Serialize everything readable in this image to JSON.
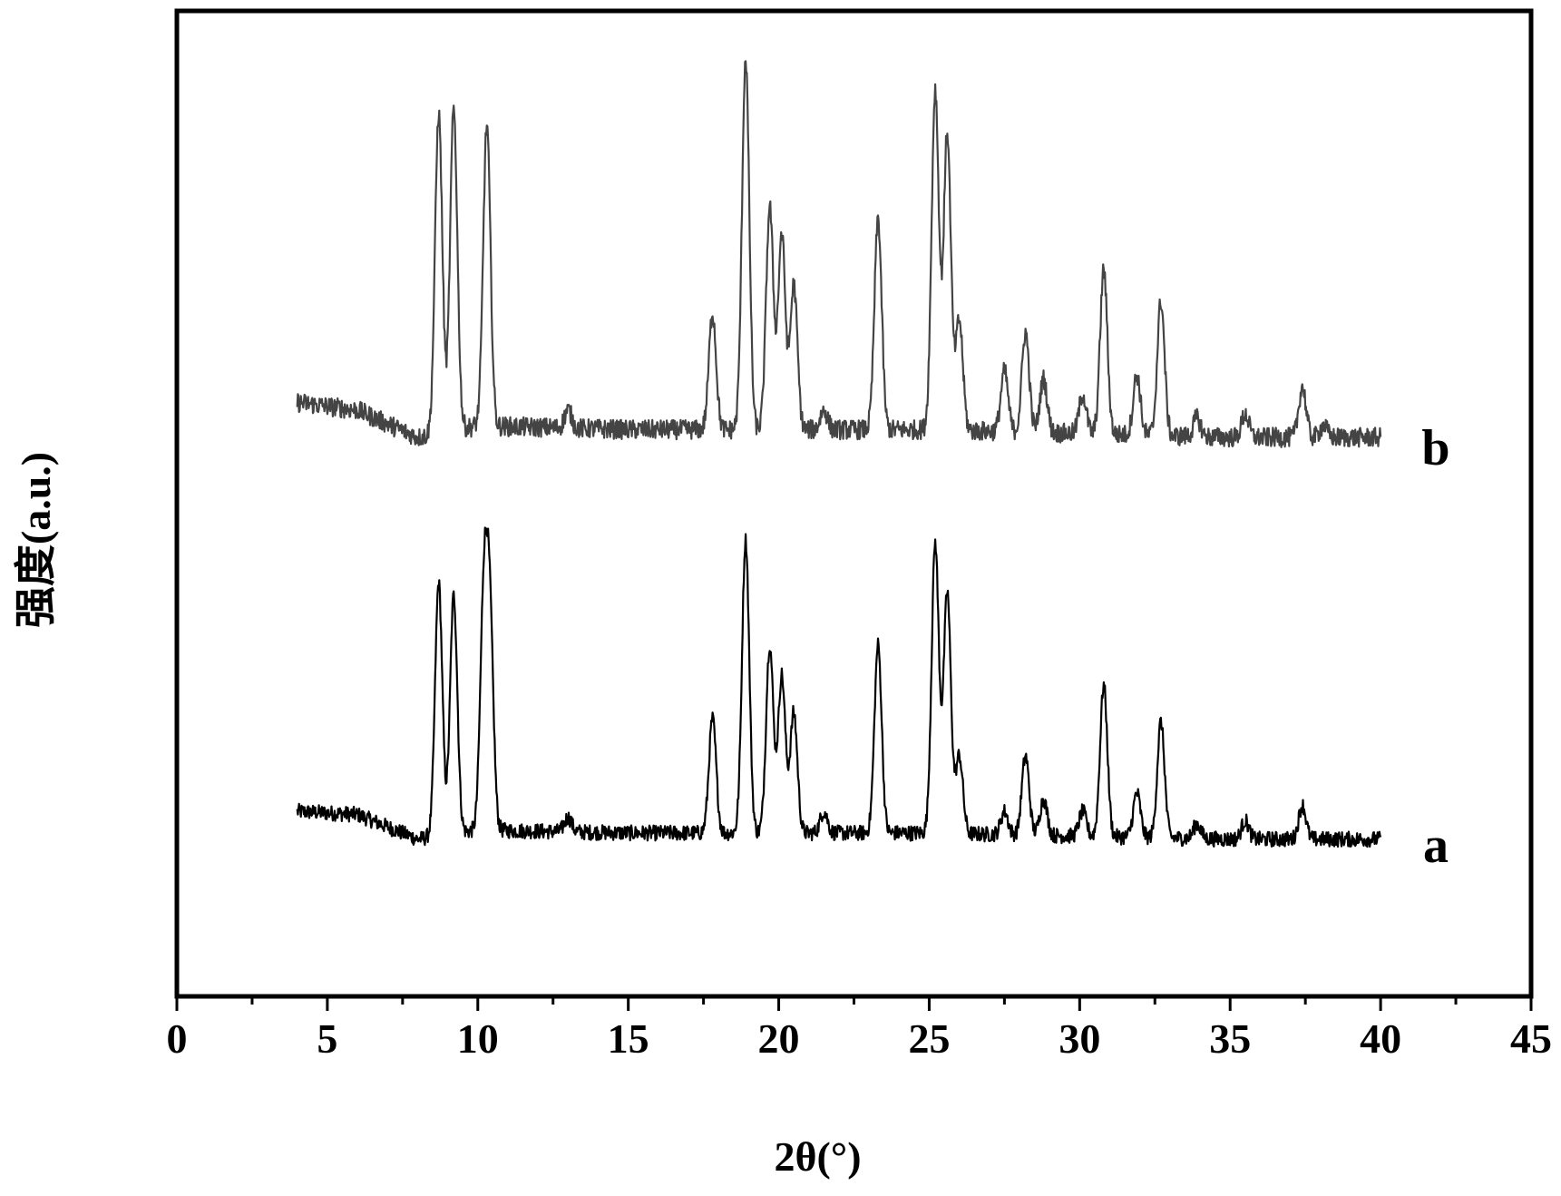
{
  "chart_data": {
    "type": "line",
    "xlabel": "2θ(°)",
    "ylabel": "强度(a.u.)",
    "xlim": [
      0,
      45
    ],
    "xticks": [
      "0",
      "5",
      "10",
      "15",
      "20",
      "25",
      "30",
      "35",
      "40",
      "45"
    ],
    "grid": false,
    "y_axis_ticks": false,
    "series": [
      {
        "name": "a",
        "color": "#000000",
        "x_range": [
          4,
          40
        ],
        "baseline": [
          [
            4,
            0.12
          ],
          [
            6,
            0.11
          ],
          [
            8,
            0.03
          ],
          [
            10,
            0.06
          ],
          [
            15,
            0.05
          ],
          [
            20,
            0.05
          ],
          [
            25,
            0.05
          ],
          [
            30,
            0.04
          ],
          [
            35,
            0.03
          ],
          [
            40,
            0.03
          ]
        ],
        "peaks": [
          {
            "x": 8.7,
            "y": 0.86
          },
          {
            "x": 9.2,
            "y": 0.82
          },
          {
            "x": 10.2,
            "y": 0.79
          },
          {
            "x": 10.4,
            "y": 0.72
          },
          {
            "x": 13.0,
            "y": 0.1
          },
          {
            "x": 17.8,
            "y": 0.42
          },
          {
            "x": 18.9,
            "y": 1.0
          },
          {
            "x": 19.7,
            "y": 0.66
          },
          {
            "x": 20.1,
            "y": 0.56
          },
          {
            "x": 20.5,
            "y": 0.44
          },
          {
            "x": 21.5,
            "y": 0.12
          },
          {
            "x": 23.3,
            "y": 0.66
          },
          {
            "x": 25.2,
            "y": 0.99
          },
          {
            "x": 25.6,
            "y": 0.83
          },
          {
            "x": 26.0,
            "y": 0.3
          },
          {
            "x": 27.5,
            "y": 0.12
          },
          {
            "x": 28.2,
            "y": 0.3
          },
          {
            "x": 28.8,
            "y": 0.16
          },
          {
            "x": 30.1,
            "y": 0.12
          },
          {
            "x": 30.8,
            "y": 0.53
          },
          {
            "x": 31.9,
            "y": 0.18
          },
          {
            "x": 32.7,
            "y": 0.41
          },
          {
            "x": 33.9,
            "y": 0.08
          },
          {
            "x": 35.5,
            "y": 0.09
          },
          {
            "x": 37.4,
            "y": 0.14
          }
        ]
      },
      {
        "name": "b",
        "color": "#444444",
        "x_range": [
          4,
          40
        ],
        "baseline": [
          [
            4,
            0.12
          ],
          [
            6,
            0.1
          ],
          [
            8,
            0.03
          ],
          [
            10,
            0.06
          ],
          [
            15,
            0.05
          ],
          [
            20,
            0.05
          ],
          [
            25,
            0.05
          ],
          [
            30,
            0.04
          ],
          [
            35,
            0.03
          ],
          [
            40,
            0.03
          ]
        ],
        "peaks": [
          {
            "x": 8.7,
            "y": 0.86
          },
          {
            "x": 9.2,
            "y": 0.87
          },
          {
            "x": 10.3,
            "y": 0.83
          },
          {
            "x": 13.0,
            "y": 0.1
          },
          {
            "x": 17.8,
            "y": 0.35
          },
          {
            "x": 18.9,
            "y": 1.0
          },
          {
            "x": 19.7,
            "y": 0.62
          },
          {
            "x": 20.1,
            "y": 0.55
          },
          {
            "x": 20.5,
            "y": 0.42
          },
          {
            "x": 21.5,
            "y": 0.1
          },
          {
            "x": 23.3,
            "y": 0.59
          },
          {
            "x": 25.2,
            "y": 0.92
          },
          {
            "x": 25.6,
            "y": 0.81
          },
          {
            "x": 26.0,
            "y": 0.33
          },
          {
            "x": 27.5,
            "y": 0.2
          },
          {
            "x": 28.2,
            "y": 0.3
          },
          {
            "x": 28.8,
            "y": 0.18
          },
          {
            "x": 30.1,
            "y": 0.14
          },
          {
            "x": 30.8,
            "y": 0.46
          },
          {
            "x": 31.9,
            "y": 0.19
          },
          {
            "x": 32.7,
            "y": 0.38
          },
          {
            "x": 33.9,
            "y": 0.08
          },
          {
            "x": 35.5,
            "y": 0.09
          },
          {
            "x": 37.4,
            "y": 0.16
          },
          {
            "x": 38.1,
            "y": 0.06
          }
        ]
      }
    ]
  }
}
